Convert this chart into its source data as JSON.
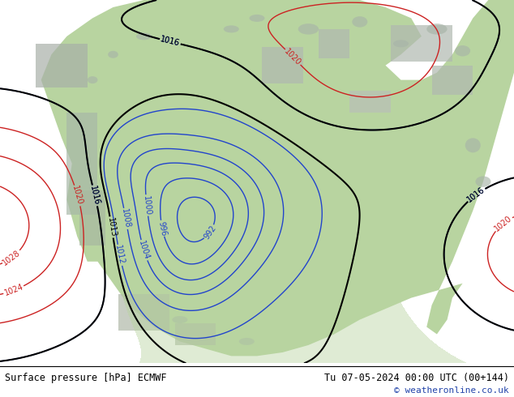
{
  "title_left": "Surface pressure [hPa] ECMWF",
  "title_right": "Tu 07-05-2024 00:00 UTC (00+144)",
  "copyright": "© weatheronline.co.uk",
  "fig_width": 6.34,
  "fig_height": 4.9,
  "dpi": 100,
  "bottom_bar_height": 0.085,
  "ocean_color": "#ccd4e0",
  "land_green_color": "#b8d4a0",
  "land_grey_color": "#b0b8b0",
  "bar_bg": "#ffffff",
  "blue_isobar_color": "#2244cc",
  "black_isobar_color": "#000000",
  "red_isobar_color": "#cc2222",
  "copyright_color": "#2244aa"
}
